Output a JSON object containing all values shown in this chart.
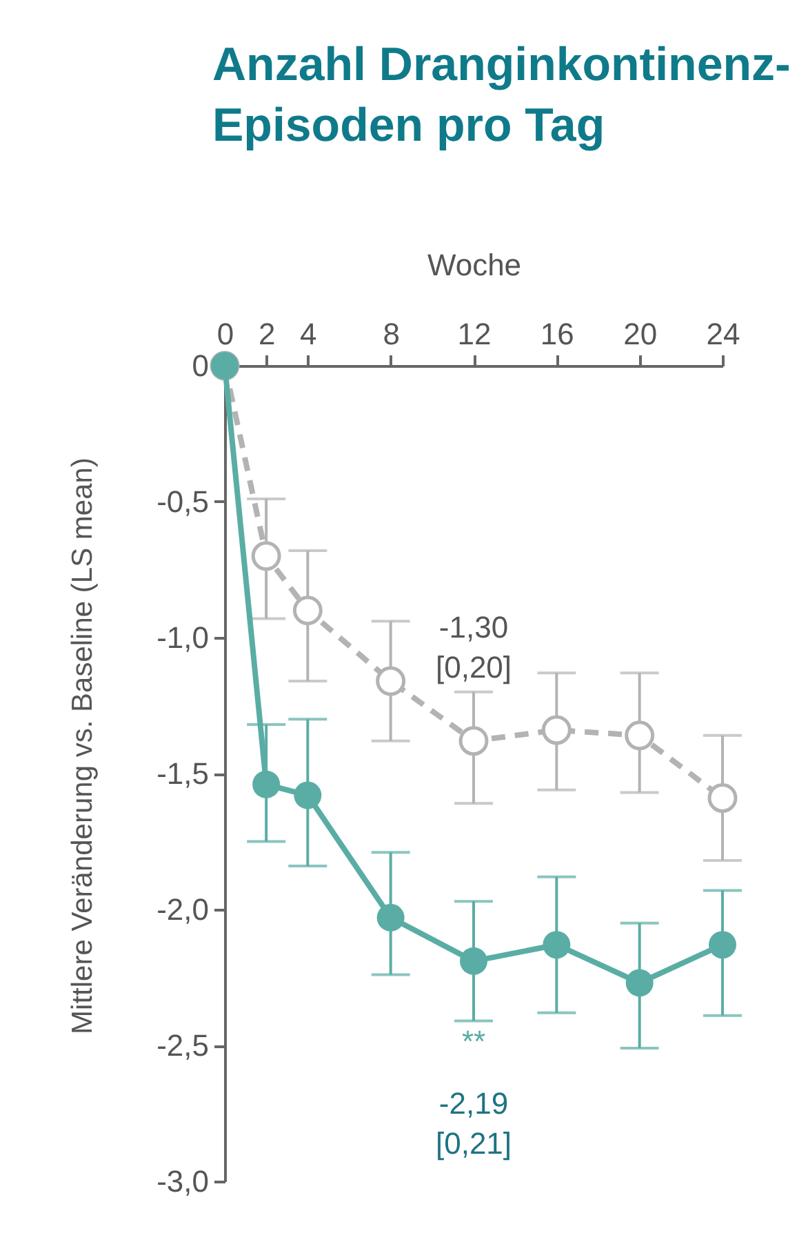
{
  "chart_data": {
    "type": "line",
    "title": "Anzahl Dranginkontinenz-Episoden pro Tag",
    "xlabel": "Woche",
    "ylabel": "Mittlere Veränderung vs. Baseline (LS mean)",
    "x": [
      0,
      2,
      4,
      8,
      12,
      16,
      20,
      24
    ],
    "xlim": [
      0,
      24
    ],
    "xticks": [
      0,
      2,
      4,
      8,
      12,
      16,
      20,
      24
    ],
    "ylim": [
      -3,
      0
    ],
    "yticks": [
      {
        "value": 0,
        "label": "0"
      },
      {
        "value": -0.5,
        "label": "-0,5"
      },
      {
        "value": -1,
        "label": "-1,0"
      },
      {
        "value": -1.5,
        "label": "-1,5"
      },
      {
        "value": -2,
        "label": "-2,0"
      },
      {
        "value": -2.5,
        "label": "-2,5"
      },
      {
        "value": -3,
        "label": "-3,0"
      }
    ],
    "grid": false,
    "marker": "circle",
    "series": [
      {
        "color": "#5aada5",
        "line_style": "solid",
        "values": [
          0,
          -1.54,
          -1.58,
          -2.03,
          -2.19,
          -2.13,
          -2.27,
          -2.13
        ],
        "errors": [
          null,
          [
            -1.75,
            -1.32
          ],
          [
            -1.84,
            -1.3
          ],
          [
            -2.24,
            -1.79
          ],
          [
            -2.41,
            -1.97
          ],
          [
            -2.38,
            -1.88
          ],
          [
            -2.51,
            -2.05
          ],
          [
            -2.39,
            -1.93
          ]
        ]
      },
      {
        "color": "#b3b3b3",
        "line_style": "dashed",
        "values": [
          0,
          -0.7,
          -0.9,
          -1.16,
          -1.38,
          -1.34,
          -1.36,
          -1.59
        ],
        "errors": [
          null,
          [
            -0.93,
            -0.49
          ],
          [
            -1.16,
            -0.68
          ],
          [
            -1.38,
            -0.94
          ],
          [
            -1.61,
            -1.2
          ],
          [
            -1.56,
            -1.13
          ],
          [
            -1.57,
            -1.13
          ],
          [
            -1.82,
            -1.36
          ]
        ]
      }
    ],
    "annotations": [
      "-1,30\n[0,20]",
      "**",
      "-2,19\n[0,21]"
    ]
  }
}
